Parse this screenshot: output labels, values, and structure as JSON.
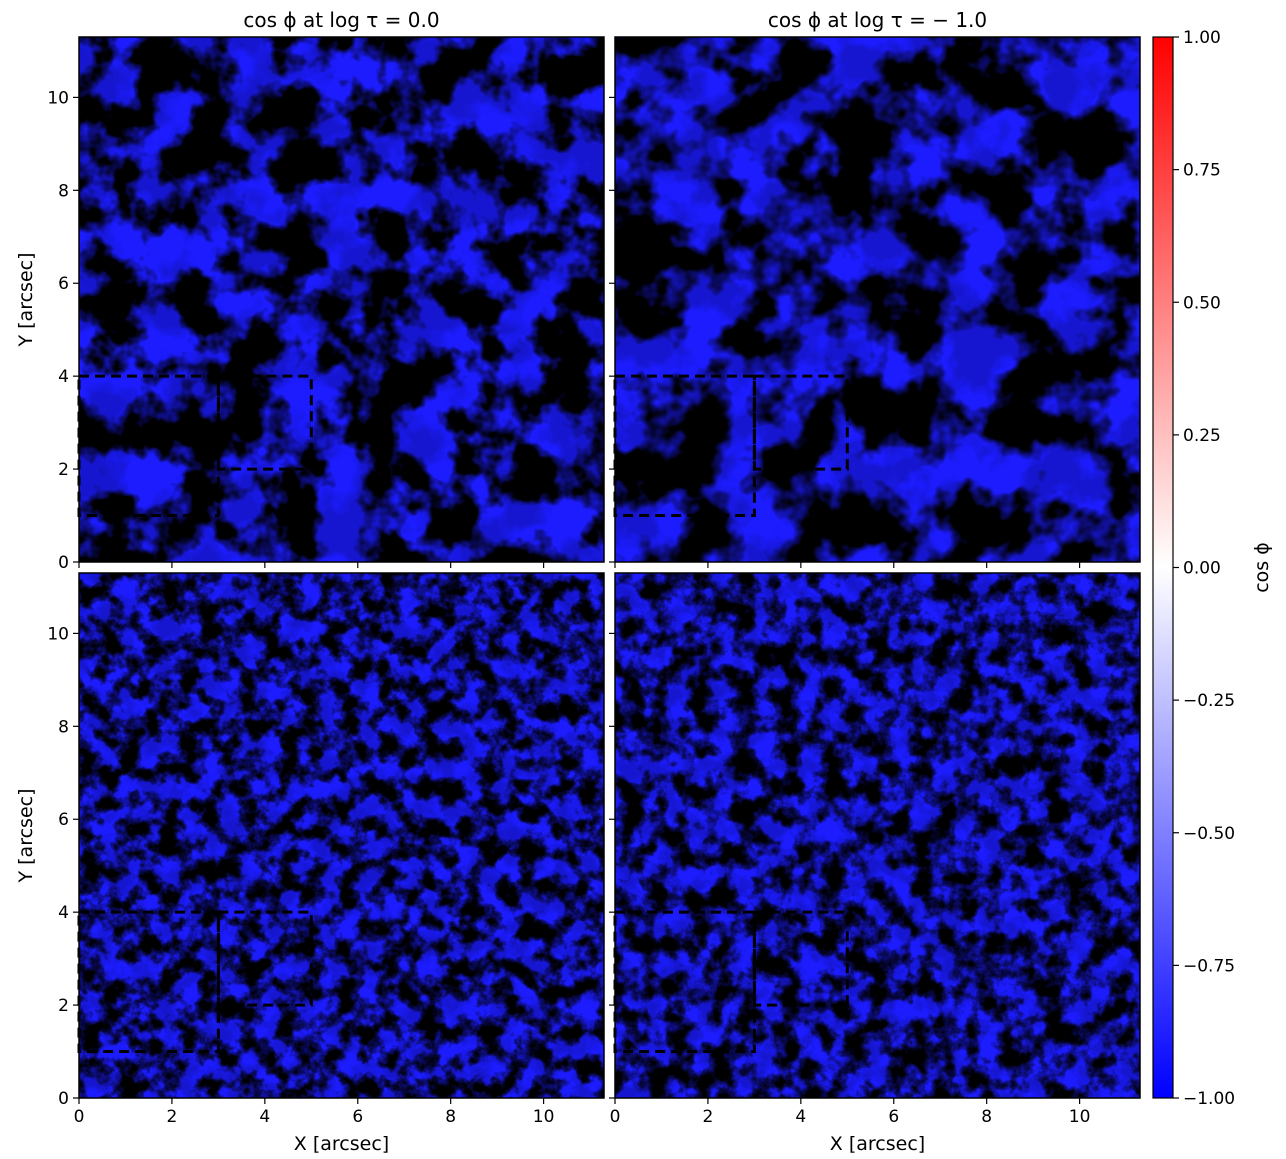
{
  "chart_data": {
    "type": "heatmap",
    "layout": "2x2 grid, shared colorbar on right",
    "colormap": "bwr",
    "colormap_colors": {
      "min": "#0000ff",
      "mid": "#ffffff",
      "max": "#ff0000"
    },
    "xlim": [
      0,
      11.3
    ],
    "ylim": [
      0,
      11.3
    ],
    "x_ticks": [
      "0",
      "2",
      "4",
      "6",
      "8",
      "10"
    ],
    "y_ticks": [
      "0",
      "2",
      "4",
      "6",
      "8",
      "10"
    ],
    "xlabel": "X [arcsec]",
    "ylabel": "Y [arcsec]",
    "colorbar": {
      "label": "cos ϕ",
      "range": [
        -1.0,
        1.0
      ],
      "ticks": [
        "1.00",
        "0.75",
        "0.50",
        "0.25",
        "0.00",
        "−0.25",
        "−0.50",
        "−0.75",
        "−1.00"
      ]
    },
    "panels": [
      {
        "row": 0,
        "col": 0,
        "title": "cos ϕ at log τ = 0.0",
        "texture": "smooth"
      },
      {
        "row": 0,
        "col": 1,
        "title": "cos ϕ at log τ = − 1.0",
        "texture": "smooth"
      },
      {
        "row": 1,
        "col": 0,
        "title": "",
        "texture": "noisy"
      },
      {
        "row": 1,
        "col": 1,
        "title": "",
        "texture": "noisy"
      }
    ],
    "overlay_boxes": [
      {
        "x": [
          0,
          3
        ],
        "y": [
          1,
          4
        ],
        "style": "dashed black"
      },
      {
        "x": [
          3,
          5
        ],
        "y": [
          2,
          4
        ],
        "style": "dashed black"
      }
    ]
  }
}
